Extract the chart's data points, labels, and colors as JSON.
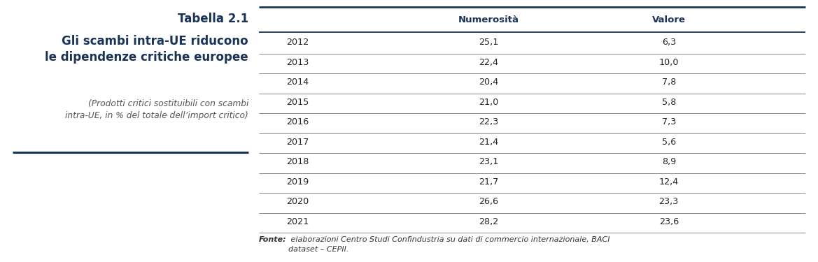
{
  "title_label": "Tabella 2.1",
  "title_main": "Gli scambi intra-UE riducono\nle dipendenze critiche europee",
  "subtitle": "(Prodotti critici sostituibili con scambi\nintra-UE, in % del totale dell’import critico)",
  "col_headers": [
    "",
    "Numerosità",
    "Valore"
  ],
  "rows": [
    [
      "2012",
      "25,1",
      "6,3"
    ],
    [
      "2013",
      "22,4",
      "10,0"
    ],
    [
      "2014",
      "20,4",
      "7,8"
    ],
    [
      "2015",
      "21,0",
      "5,8"
    ],
    [
      "2016",
      "22,3",
      "7,3"
    ],
    [
      "2017",
      "21,4",
      "5,6"
    ],
    [
      "2018",
      "23,1",
      "8,9"
    ],
    [
      "2019",
      "21,7",
      "12,4"
    ],
    [
      "2020",
      "26,6",
      "23,3"
    ],
    [
      "2021",
      "28,2",
      "23,6"
    ]
  ],
  "footer_italic": "Fonte:",
  "footer_rest": " elaborazioni Centro Studi Confindustria su dati di commercio internazionale, BACI\ndataset – CEPII.",
  "background_color": "#ffffff",
  "header_line_color": "#1a3358",
  "row_line_color": "#888888",
  "title_color": "#1a3358",
  "text_color": "#222222",
  "footer_color": "#333333",
  "accent_line_color": "#1a3358",
  "fig_width": 11.69,
  "fig_height": 3.75,
  "dpi": 100
}
